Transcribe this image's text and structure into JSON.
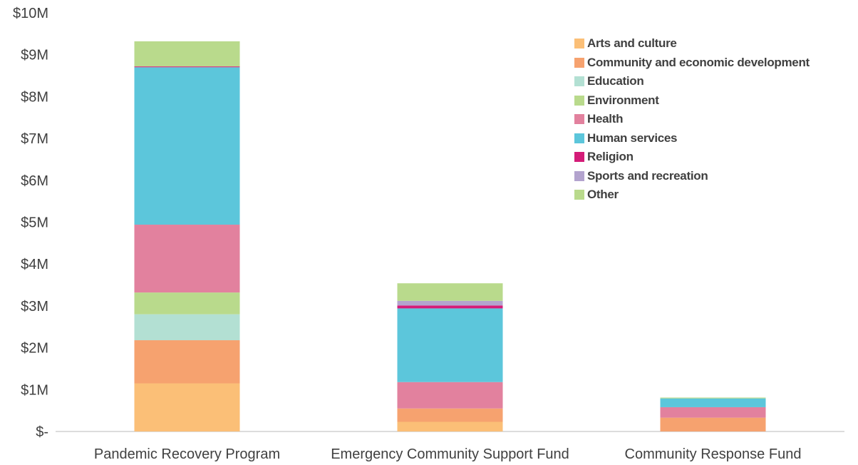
{
  "chart_data": {
    "type": "stacked-bar",
    "categories": [
      "Pandemic Recovery Program",
      "Emergency Community Support Fund",
      "Community Response Fund"
    ],
    "y_ticks": [
      "$-",
      "$1M",
      "$2M",
      "$3M",
      "$4M",
      "$5M",
      "$6M",
      "$7M",
      "$8M",
      "$9M",
      "$10M"
    ],
    "ylim": [
      0,
      10000000
    ],
    "grid": false,
    "legend_position": "top-right",
    "series": [
      {
        "name": "Arts and culture",
        "color": "#FBBF77",
        "values": [
          1150000,
          230000,
          0
        ]
      },
      {
        "name": "Community and economic development",
        "color": "#F6A26F",
        "values": [
          1030000,
          320000,
          330000
        ]
      },
      {
        "name": "Education",
        "color": "#B3E0D3",
        "values": [
          620000,
          0,
          0
        ]
      },
      {
        "name": "Environment",
        "color": "#B9DA8C",
        "values": [
          520000,
          0,
          0
        ]
      },
      {
        "name": "Health",
        "color": "#E2819E",
        "values": [
          1620000,
          630000,
          250000
        ]
      },
      {
        "name": "Human services",
        "color": "#5CC6DB",
        "values": [
          3760000,
          1760000,
          210000
        ]
      },
      {
        "name": "Religion",
        "color": "#D41C78",
        "values": [
          20000,
          70000,
          0
        ]
      },
      {
        "name": "Sports and recreation",
        "color": "#B3A3CE",
        "values": [
          0,
          110000,
          0
        ]
      },
      {
        "name": "Other",
        "color": "#B9DA8C",
        "values": [
          600000,
          420000,
          20000
        ]
      }
    ]
  }
}
